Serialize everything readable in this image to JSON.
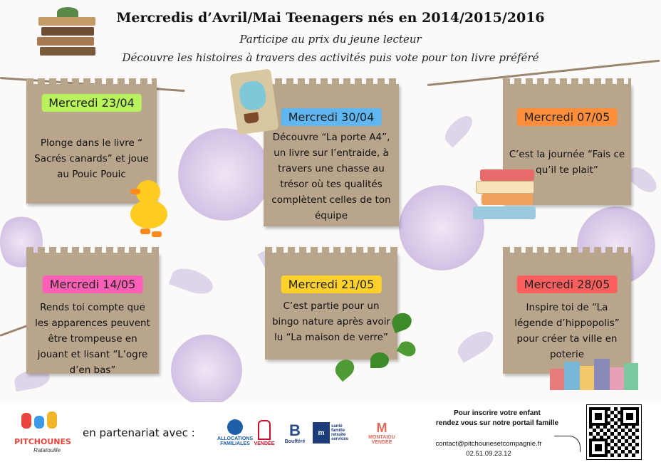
{
  "header": {
    "title": "Mercredis d’Avril/Mai Teenagers nés en 2014/2015/2016",
    "subtitle1": "Participe au prix du jeune lecteur",
    "subtitle2": "Découvre les histoires à travers des activités puis vote pour ton livre préféré"
  },
  "cards": [
    {
      "date": "Mercredi 23/04",
      "color": "#b8f25c",
      "text": "Plonge dans le livre “ Sacrés canards” et joue au Pouic Pouic"
    },
    {
      "date": "Mercredi 30/04",
      "color": "#5fb6f0",
      "text": "Découvre “La porte A4”, un livre sur l’entraide, à travers une chasse au trésor où tes qualités complètent celles de ton équipe"
    },
    {
      "date": "Mercredi 07/05",
      "color": "#ff8e3c",
      "text": "C’est la journée “Fais ce qu’il te plait”"
    },
    {
      "date": "Mercredi 14/05",
      "color": "#ff5fb6",
      "text": "Rends toi compte que les apparences peuvent être trompeuse en jouant et lisant “L’ogre d’en bas”"
    },
    {
      "date": "Mercredi 21/05",
      "color": "#ffd12a",
      "text": "C’est partie pour un bingo nature après avoir lu “La maison de verre”"
    },
    {
      "date": "Mercredi 28/05",
      "color": "#ff5f5f",
      "text": "Inspire toi de “La légende d’hippopolis” pour créer ta ville en poterie"
    }
  ],
  "footer": {
    "logo_name": "PITCHOUNES",
    "logo_sub": "Ratatouille",
    "partners_label": "en partenariat avec :",
    "partners": [
      {
        "name": "ALLOCATIONS FAMILIALES",
        "color": "#1d5fa8"
      },
      {
        "name": "VENDÉE",
        "color": "#c8102e"
      },
      {
        "name": "Boufféré",
        "color": "#2b4a8a"
      },
      {
        "name": "santé famille retraite services",
        "color": "#1d3c7a"
      },
      {
        "name": "MONTAIGU VENDÉE",
        "color": "#e06a5a"
      }
    ],
    "signup_line1": "Pour inscrire votre enfant",
    "signup_line2": "rendez vous sur notre portail famille",
    "email": "contact@pitchounesetcompagnie.fr",
    "phone": "02.51.09.23.12"
  }
}
